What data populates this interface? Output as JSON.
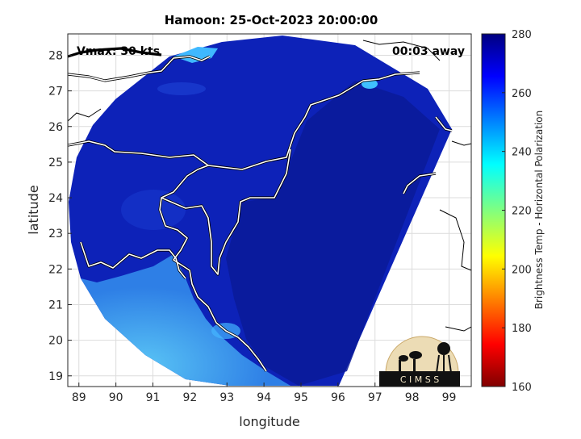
{
  "title": "Hamoon: 25-Oct-2023 20:00:00",
  "vmax_label": "Vmax: 30 kts",
  "time_away_label": "00:03 away",
  "xlabel": "longitude",
  "ylabel": "latitude",
  "x_ticks": [
    "89",
    "90",
    "91",
    "92",
    "93",
    "94",
    "95",
    "96",
    "97",
    "98",
    "99"
  ],
  "y_ticks": [
    "28",
    "27",
    "26",
    "25",
    "24",
    "23",
    "22",
    "21",
    "20",
    "19"
  ],
  "colorbar": {
    "label": "Brightness Temp - Horizontal Polarization",
    "ticks": [
      "280",
      "260",
      "240",
      "220",
      "200",
      "180",
      "160"
    ],
    "range": [
      160,
      280
    ],
    "colormap": "jet"
  },
  "logo": {
    "text": "C I M S S"
  },
  "map_extent": {
    "lon": [
      88.7,
      99.6
    ],
    "lat": [
      18.7,
      28.6
    ]
  },
  "swath_colors": {
    "land": "#0a1fa8",
    "ocean": "#3f9cf0",
    "edge": "#1b4fd8"
  }
}
